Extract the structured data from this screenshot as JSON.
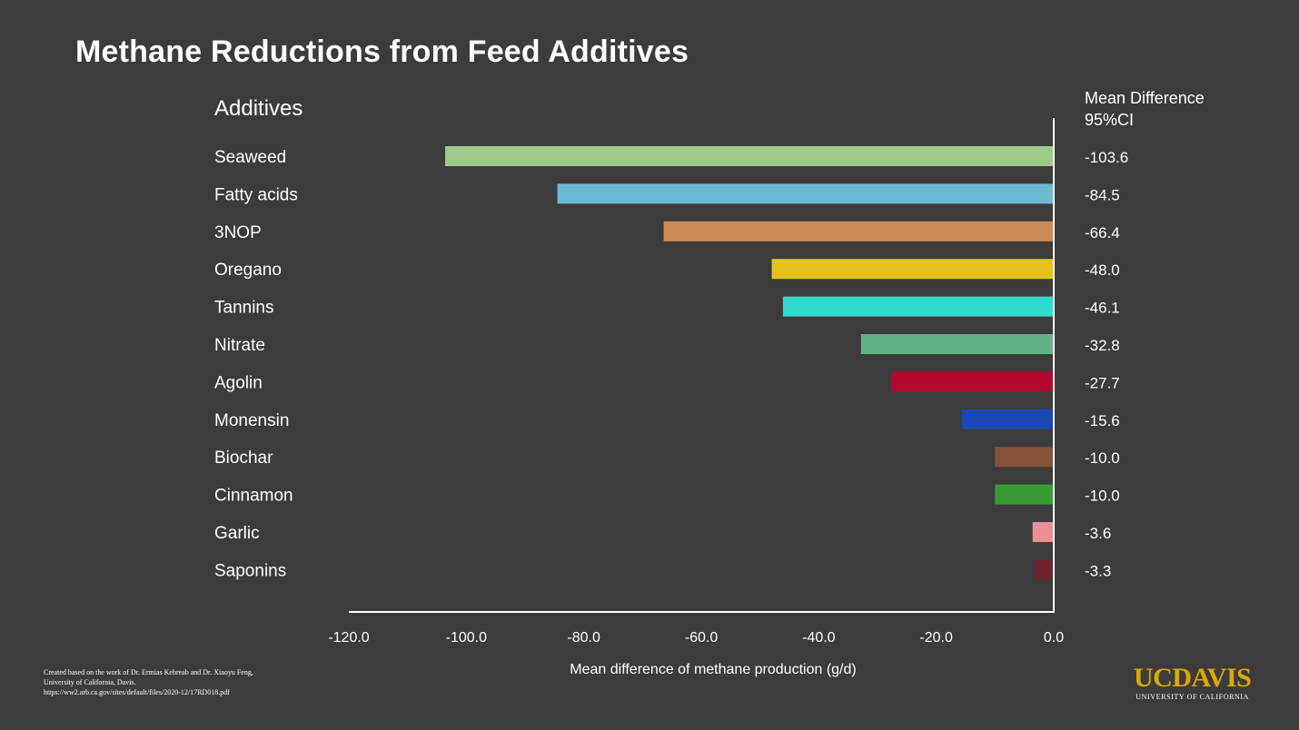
{
  "chart_data": {
    "type": "bar",
    "orientation": "horizontal",
    "title": "Methane Reductions from Feed Additives",
    "category_header": "Additives",
    "value_header": [
      "Mean Difference",
      "95%CI"
    ],
    "xlabel": "Mean difference of methane production (g/d)",
    "xlim": [
      -120,
      0
    ],
    "xticks": [
      "-120.0",
      "-100.0",
      "-80.0",
      "-60.0",
      "-40.0",
      "-20.0",
      "0.0"
    ],
    "tick_values": [
      -120,
      -100,
      -80,
      -60,
      -40,
      -20,
      0
    ],
    "categories": [
      "Seaweed",
      "Fatty acids",
      "3NOP",
      "Oregano",
      "Tannins",
      "Nitrate",
      "Agolin",
      "Monensin",
      "Biochar",
      "Cinnamon",
      "Garlic",
      "Saponins"
    ],
    "values": [
      -103.6,
      -84.5,
      -66.4,
      -48.0,
      -46.1,
      -32.8,
      -27.7,
      -15.6,
      -10.0,
      -10.0,
      -3.6,
      -3.3
    ],
    "value_labels": [
      "-103.6",
      "-84.5",
      "-66.4",
      "-48.0",
      "-46.1",
      "-32.8",
      "-27.7",
      "-15.6",
      "-10.0",
      "-10.0",
      "-3.6",
      "-3.3"
    ],
    "colors": [
      "#9dc98b",
      "#6cb9d3",
      "#cc8a55",
      "#e3c31c",
      "#2edbd1",
      "#64b388",
      "#b4082e",
      "#1b49b4",
      "#84533a",
      "#3a9b35",
      "#e88f98",
      "#6e2331"
    ]
  },
  "credit": [
    "Created based on the work of Dr. Ermias Kebreab and Dr. Xiaoyu Feng,",
    "University of California, Davis.",
    "https://ww2.arb.ca.gov/sites/default/files/2020-12/17RD018.pdf"
  ],
  "logo": {
    "name": "UCDAVIS",
    "subtitle": "UNIVERSITY OF CALIFORNIA"
  }
}
